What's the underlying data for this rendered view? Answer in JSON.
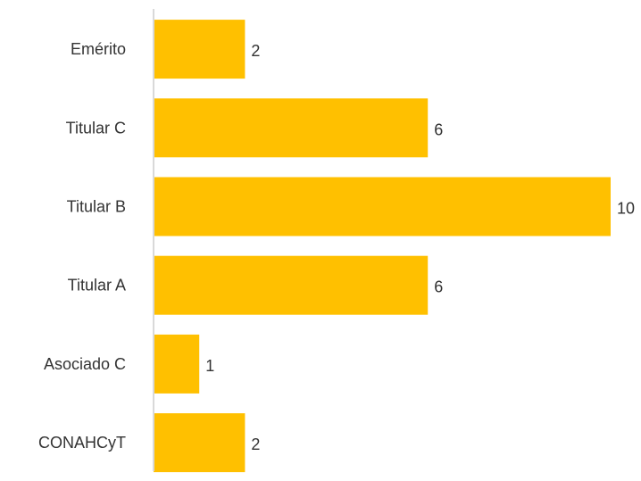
{
  "colors": {
    "bar": "#FFC000",
    "axis": "#D9D9D9",
    "text": "#333333"
  },
  "chart_data": {
    "type": "bar",
    "orientation": "horizontal",
    "title": "",
    "xlabel": "",
    "ylabel": "",
    "categories": [
      "Emérito",
      "Titular C",
      "Titular B",
      "Titular A",
      "Asociado C",
      "CONAHCyT"
    ],
    "values": [
      2,
      6,
      10,
      6,
      1,
      2
    ],
    "xlim": [
      0,
      10
    ],
    "grid": false,
    "legend": "none",
    "data_labels": true
  }
}
